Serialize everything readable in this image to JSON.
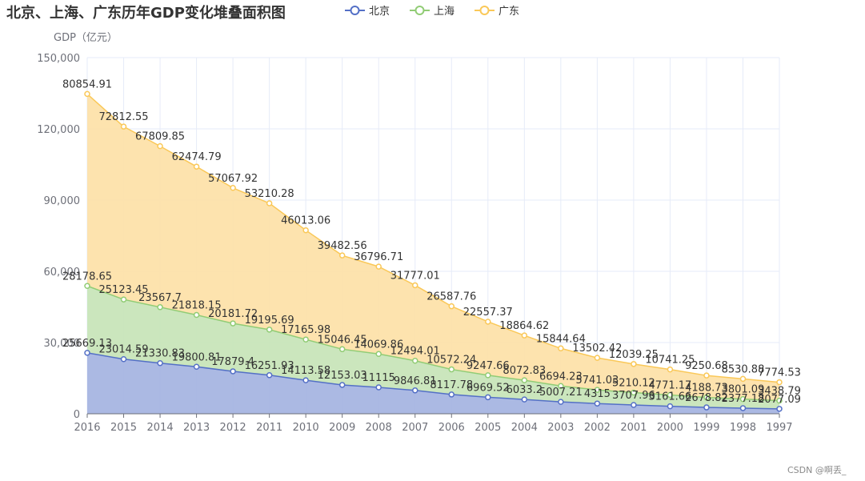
{
  "chart_data": {
    "type": "area",
    "stacked": true,
    "title": "北京、上海、广东历年GDP变化堆叠面积图",
    "ylabel": "GDP（亿元）",
    "xlabel": "",
    "ylim": [
      0,
      150000
    ],
    "yticks": [
      "0",
      "30,000",
      "60,000",
      "90,000",
      "120,000",
      "150,000"
    ],
    "ytick_values": [
      0,
      30000,
      60000,
      90000,
      120000,
      150000
    ],
    "grid": true,
    "legend_position": "top",
    "categories": [
      "2016",
      "2015",
      "2014",
      "2013",
      "2012",
      "2011",
      "2010",
      "2009",
      "2008",
      "2007",
      "2006",
      "2005",
      "2004",
      "2003",
      "2002",
      "2001",
      "2000",
      "1999",
      "1998",
      "1997"
    ],
    "series": [
      {
        "name": "北京",
        "color": "#5470c6",
        "fill": "#a7b5e2",
        "values": [
          25669.13,
          23014.59,
          21330.83,
          19800.81,
          17879.4,
          16251.93,
          14113.58,
          12153.03,
          11115,
          9846.81,
          8117.78,
          6969.52,
          6033.2,
          5007.21,
          4315,
          3707.96,
          3161.66,
          2678.82,
          2377.18,
          2077.09
        ],
        "labels": [
          "25669.13",
          "23014.59",
          "21330.83",
          "19800.81",
          "17879.4",
          "16251.93",
          "14113.58",
          "12153.03",
          "11115",
          "9846.81",
          "8117.78",
          "6969.52",
          "6033.2",
          "5007.21",
          "4315",
          "3707.96",
          "3161.66",
          "2678.82",
          "2377.18",
          "2077.09"
        ]
      },
      {
        "name": "上海",
        "color": "#91cc75",
        "fill": "#c8e5b9",
        "values": [
          28178.65,
          25123.45,
          23567.7,
          21818.15,
          20181.72,
          19195.69,
          17165.98,
          15046.45,
          14069.86,
          12494.01,
          10572.24,
          9247.66,
          8072.83,
          6694.23,
          5741.03,
          5210.12,
          4771.17,
          4188.73,
          3801.09,
          3438.79
        ],
        "labels": [
          "28178.65",
          "25123.45",
          "23567.7",
          "21818.15",
          "20181.72",
          "19195.69",
          "17165.98",
          "15046.45",
          "14069.86",
          "12494.01",
          "10572.24",
          "9247.66",
          "8072.83",
          "6694.23",
          "5741.03",
          "5210.12",
          "4771.17",
          "4188.73",
          "3801.09",
          "3438.79"
        ]
      },
      {
        "name": "广东",
        "color": "#fac858",
        "fill": "#fde2aa",
        "values": [
          80854.91,
          72812.55,
          67809.85,
          62474.79,
          57067.92,
          53210.28,
          46013.06,
          39482.56,
          36796.71,
          31777.01,
          26587.76,
          22557.37,
          18864.62,
          15844.64,
          13502.42,
          12039.25,
          10741.25,
          9250.68,
          8530.88,
          7774.53
        ],
        "labels": [
          "80854.91",
          "72812.55",
          "67809.85",
          "62474.79",
          "57067.92",
          "53210.28",
          "46013.06",
          "39482.56",
          "36796.71",
          "31777.01",
          "26587.76",
          "22557.37",
          "18864.62",
          "15844.64",
          "13502.42",
          "12039.25",
          "10741.25",
          "9250.68",
          "8530.88",
          "7774.53"
        ]
      }
    ]
  },
  "watermark": "CSDN @啊丢_",
  "colors": {
    "grid": "#e6ebf8",
    "axis": "#6e7079",
    "axis_line": "#6e7079"
  }
}
